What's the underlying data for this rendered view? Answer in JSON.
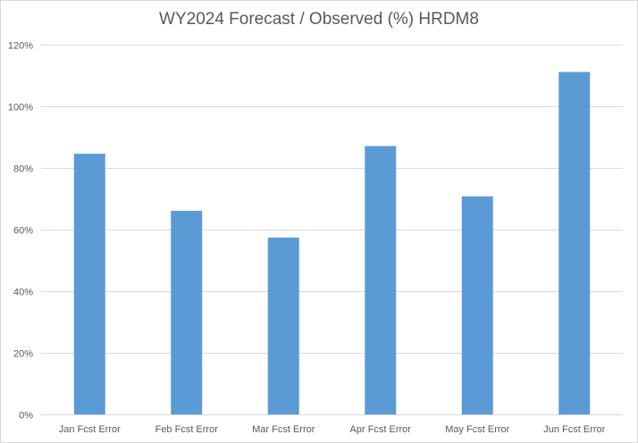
{
  "chart_data": {
    "type": "bar",
    "title": "WY2024 Forecast / Observed (%) HRDM8",
    "xlabel": "",
    "ylabel": "",
    "categories": [
      "Jan Fcst Error",
      "Feb Fcst Error",
      "Mar Fcst Error",
      "Apr Fcst Error",
      "May Fcst Error",
      "Jun Fcst Error"
    ],
    "values": [
      84.5,
      66,
      57.3,
      87,
      70.7,
      111
    ],
    "value_unit": "%",
    "ylim": [
      0,
      120
    ],
    "yticks": [
      0,
      20,
      40,
      60,
      80,
      100,
      120
    ],
    "ytick_labels": [
      "0%",
      "20%",
      "40%",
      "60%",
      "80%",
      "100%",
      "120%"
    ],
    "grid": true,
    "legend": "none",
    "bar_color": "#5b9bd5",
    "grid_color": "#d9d9d9",
    "text_color": "#595959"
  }
}
